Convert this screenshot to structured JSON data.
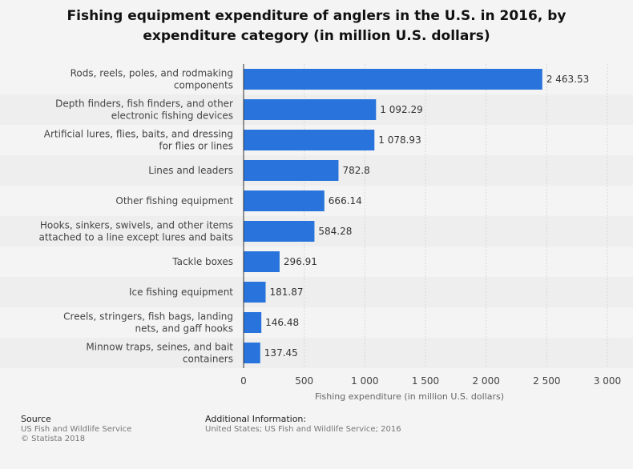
{
  "chart_data": {
    "type": "bar",
    "orientation": "horizontal",
    "title_lines": [
      "Fishing equipment expenditure of anglers in the U.S. in 2016, by",
      "expenditure category (in million U.S. dollars)"
    ],
    "categories": [
      [
        "Rods, reels, poles, and rodmaking",
        "components"
      ],
      [
        "Depth finders, fish finders, and other",
        "electronic fishing devices"
      ],
      [
        "Artificial lures, flies, baits, and dressing",
        "for flies or lines"
      ],
      [
        "Lines and leaders"
      ],
      [
        "Other fishing equipment"
      ],
      [
        "Hooks, sinkers, swivels, and other items",
        "attached to a line except lures and baits"
      ],
      [
        "Tackle boxes"
      ],
      [
        "Ice fishing equipment"
      ],
      [
        "Creels, stringers, fish bags, landing",
        "nets, and gaff hooks"
      ],
      [
        "Minnow traps, seines, and bait",
        "containers"
      ]
    ],
    "values": [
      2463.53,
      1092.29,
      1078.93,
      782.8,
      666.14,
      584.28,
      296.91,
      181.87,
      146.48,
      137.45
    ],
    "value_labels": [
      "2 463.53",
      "1 092.29",
      "1 078.93",
      "782.8",
      "666.14",
      "584.28",
      "296.91",
      "181.87",
      "146.48",
      "137.45"
    ],
    "xlim": [
      0,
      3000
    ],
    "xticks": [
      0,
      500,
      1000,
      1500,
      2000,
      2500,
      3000
    ],
    "xtick_labels": [
      "0",
      "500",
      "1 000",
      "1 500",
      "2 000",
      "2 500",
      "3 000"
    ],
    "xlabel": "Fishing expenditure (in million U.S. dollars)",
    "grid": "vertical",
    "bar_color": "#2874dc"
  },
  "footer": {
    "source_heading": "Source",
    "source_lines": [
      "US Fish and Wildlife Service",
      "© Statista 2018"
    ],
    "info_heading": "Additional Information:",
    "info_lines": [
      "United States; US Fish and Wildlife Service; 2016"
    ]
  }
}
